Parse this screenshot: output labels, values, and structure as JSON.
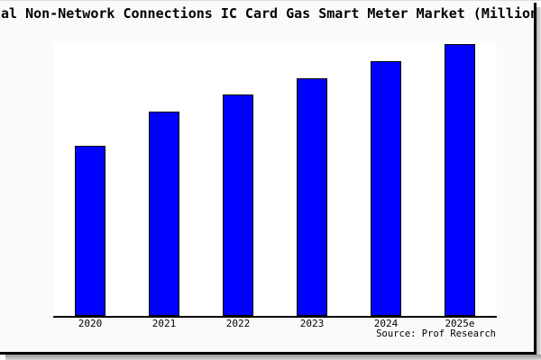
{
  "chart_data": {
    "type": "bar",
    "title": "al Non-Network Connections IC Card Gas Smart Meter Market (Million",
    "categories": [
      "2020",
      "2021",
      "2022",
      "2023",
      "2024",
      "2025e"
    ],
    "values_relative": [
      0.627,
      0.753,
      0.816,
      0.876,
      0.937,
      1.0
    ],
    "value_labels_shown": false,
    "y_axis_shown": false,
    "grid": false,
    "legend": "none",
    "bar_color": "#0000ff",
    "bar_border_color": "#000000",
    "axis_line_color": "#000000",
    "plot_bg": "#ffffff",
    "figure_bg": "#fafafa"
  },
  "footer": {
    "source_label": "Source: Prof Research"
  }
}
